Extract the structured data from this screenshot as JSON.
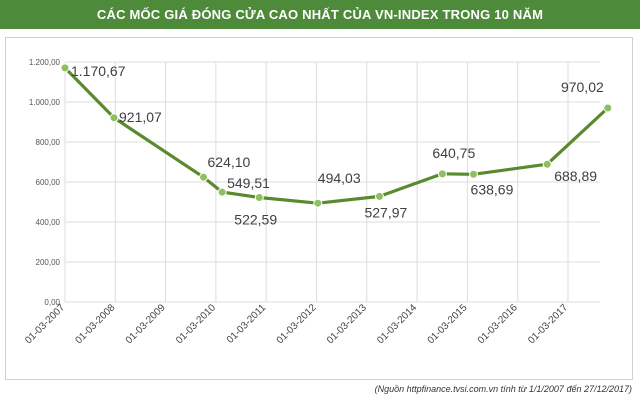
{
  "title": "CÁC MỐC GIÁ ĐÓNG CỬA CAO NHẤT CỦA VN-INDEX TRONG 10 NĂM",
  "source": "(Nguồn httpfinance.tvsi.com.vn tính từ 1/1/2007 đến 27/12/2017)",
  "colors": {
    "title_bg": "#4d8a3a",
    "line": "#5a8a2e",
    "marker": "#8fbf5f",
    "grid": "#dddddd"
  },
  "chart_data": {
    "type": "line",
    "title": "CÁC MỐC GIÁ ĐÓNG CỬA CAO NHẤT CỦA VN-INDEX TRONG 10 NĂM",
    "xlabel": "",
    "ylabel": "",
    "ylim": [
      0,
      1200
    ],
    "yticks": [
      0,
      200,
      400,
      600,
      800,
      1000,
      1200
    ],
    "ytick_labels": [
      "0,00",
      "200,00",
      "400,00",
      "600,00",
      "800,00",
      "1.000,00",
      "1.200,00"
    ],
    "xtick_labels": [
      "01-03-2007",
      "01-03-2008",
      "01-03-2009",
      "01-03-2010",
      "01-03-2011",
      "01-03-2012",
      "01-03-2013",
      "01-03-2014",
      "01-03-2015",
      "01-03-2016",
      "01-03-2017"
    ],
    "grid": true,
    "legend": "none",
    "series": [
      {
        "points": [
          {
            "x": "2007-03-01",
            "y": 1170.67,
            "label": "1.170,67"
          },
          {
            "x": "2008-02-20",
            "y": 921.07,
            "label": "921,07"
          },
          {
            "x": "2009-12-01",
            "y": 624.1,
            "label": "624,10"
          },
          {
            "x": "2010-04-15",
            "y": 549.51,
            "label": "549,51"
          },
          {
            "x": "2011-01-10",
            "y": 522.59,
            "label": "522,59"
          },
          {
            "x": "2012-03-10",
            "y": 494.03,
            "label": "494,03"
          },
          {
            "x": "2013-06-01",
            "y": 527.97,
            "label": "527,97"
          },
          {
            "x": "2014-09-01",
            "y": 640.75,
            "label": "640,75"
          },
          {
            "x": "2015-04-15",
            "y": 638.69,
            "label": "638,69"
          },
          {
            "x": "2016-10-01",
            "y": 688.89,
            "label": "688,89"
          },
          {
            "x": "2017-12-15",
            "y": 970.02,
            "label": "970,02"
          }
        ]
      }
    ]
  }
}
